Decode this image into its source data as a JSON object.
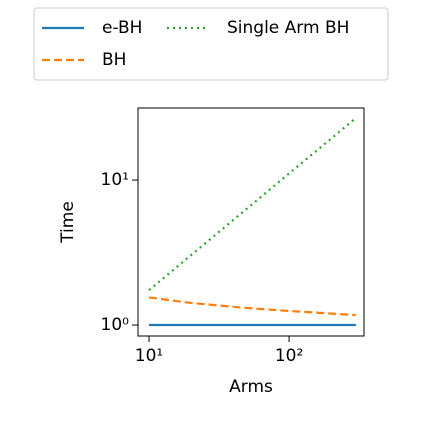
{
  "chart_data": {
    "type": "line",
    "xlabel": "Arms",
    "ylabel": "Time",
    "x": [
      10,
      20,
      50,
      100,
      200,
      300
    ],
    "series": [
      {
        "name": "e-BH",
        "color": "#1f77b4",
        "style": "solid",
        "values": [
          1,
          1,
          1,
          1,
          1,
          1
        ]
      },
      {
        "name": "BH",
        "color": "#ff7f0e",
        "style": "dashed",
        "values": [
          1.55,
          1.42,
          1.31,
          1.25,
          1.2,
          1.17
        ]
      },
      {
        "name": "Single Arm BH",
        "color": "#2ca02c",
        "style": "dotted",
        "values": [
          1.74,
          3.04,
          6.35,
          11.1,
          19.3,
          26.8
        ]
      }
    ],
    "xscale": "log",
    "yscale": "log",
    "xlim": [
      8.34,
      343
    ],
    "ylim": [
      0.84,
      31.4
    ],
    "xticks": [
      {
        "value": 10,
        "label": "10¹"
      },
      {
        "value": 100,
        "label": "10²"
      }
    ],
    "yticks": [
      {
        "value": 1,
        "label": "10⁰"
      },
      {
        "value": 10,
        "label": "10¹"
      }
    ],
    "legend": "top"
  }
}
